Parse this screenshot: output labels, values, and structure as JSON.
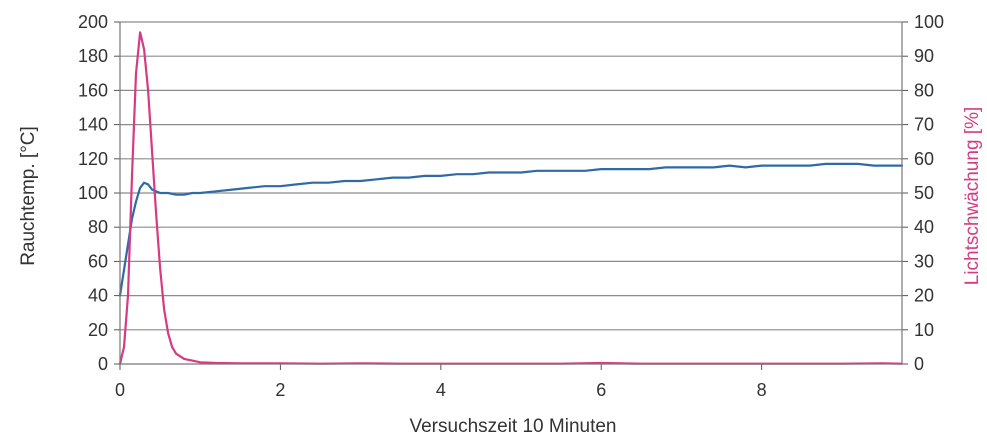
{
  "chart_data": {
    "type": "line",
    "title": "",
    "xlabel": "Versuchszeit 10 Minuten",
    "ylabel": "Rauchtemp. [°C]",
    "y2label": "Lichtschwächung [%]",
    "xlim": [
      0,
      9.75
    ],
    "ylim": [
      0,
      200
    ],
    "y2lim": [
      0,
      100
    ],
    "x_ticks": [
      0,
      2,
      4,
      6,
      8
    ],
    "y_ticks": [
      0,
      20,
      40,
      60,
      80,
      100,
      120,
      140,
      160,
      180,
      200
    ],
    "y2_ticks": [
      0,
      10,
      20,
      30,
      40,
      50,
      60,
      70,
      80,
      90,
      100
    ],
    "grid": true,
    "legend": "none",
    "series": [
      {
        "axis": "left",
        "color": "#2f6aa6",
        "x": [
          0,
          0.05,
          0.1,
          0.15,
          0.2,
          0.25,
          0.3,
          0.35,
          0.4,
          0.5,
          0.6,
          0.7,
          0.8,
          0.9,
          1.0,
          1.2,
          1.4,
          1.6,
          1.8,
          2.0,
          2.2,
          2.4,
          2.6,
          2.8,
          3.0,
          3.2,
          3.4,
          3.6,
          3.8,
          4.0,
          4.2,
          4.4,
          4.6,
          4.8,
          5.0,
          5.2,
          5.4,
          5.6,
          5.8,
          6.0,
          6.2,
          6.4,
          6.6,
          6.8,
          7.0,
          7.2,
          7.4,
          7.6,
          7.8,
          8.0,
          8.2,
          8.4,
          8.6,
          8.8,
          9.0,
          9.2,
          9.4,
          9.6,
          9.75
        ],
        "values": [
          40,
          55,
          70,
          85,
          95,
          103,
          106,
          105,
          102,
          100,
          100,
          99,
          99,
          100,
          100,
          101,
          102,
          103,
          104,
          104,
          105,
          106,
          106,
          107,
          107,
          108,
          109,
          109,
          110,
          110,
          111,
          111,
          112,
          112,
          112,
          113,
          113,
          113,
          113,
          114,
          114,
          114,
          114,
          115,
          115,
          115,
          115,
          116,
          115,
          116,
          116,
          116,
          116,
          117,
          117,
          117,
          116,
          116,
          116
        ]
      },
      {
        "axis": "right",
        "color": "#d63a83",
        "x": [
          0,
          0.05,
          0.1,
          0.15,
          0.2,
          0.25,
          0.3,
          0.35,
          0.4,
          0.45,
          0.5,
          0.55,
          0.6,
          0.65,
          0.7,
          0.8,
          0.9,
          1.0,
          1.2,
          1.5,
          2.0,
          2.5,
          3.0,
          3.5,
          4.0,
          4.5,
          5.0,
          5.5,
          6.0,
          6.5,
          7.0,
          7.5,
          8.0,
          8.5,
          9.0,
          9.5,
          9.75
        ],
        "values": [
          0,
          5,
          20,
          55,
          85,
          97,
          92,
          80,
          62,
          44,
          28,
          16,
          9,
          5,
          3,
          1.5,
          1,
          0.5,
          0.3,
          0.2,
          0.2,
          0.1,
          0.2,
          0.1,
          0.1,
          0.1,
          0.1,
          0.1,
          0.3,
          0.1,
          0.1,
          0.1,
          0.1,
          0.1,
          0.1,
          0.2,
          0.1
        ]
      }
    ]
  }
}
